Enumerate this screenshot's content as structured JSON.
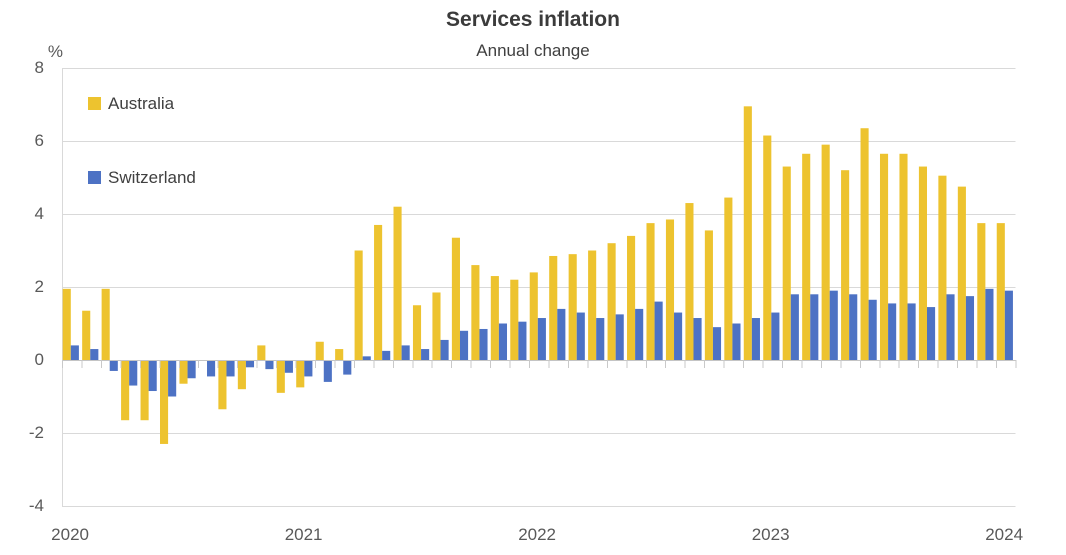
{
  "chart_data": {
    "type": "bar",
    "title": "Services inflation",
    "subtitle": "Annual change",
    "unit_label": "%",
    "frequency": "monthly",
    "start_month": "2020-01",
    "end_month": "2024-01",
    "ylim": [
      -4,
      8
    ],
    "grid": "horizontal",
    "legend_position": "top-left-inside",
    "y_ticks": [
      {
        "label": "8",
        "value": 8
      },
      {
        "label": "6",
        "value": 6
      },
      {
        "label": "4",
        "value": 4
      },
      {
        "label": "2",
        "value": 2
      },
      {
        "label": "0",
        "value": 0
      },
      {
        "label": "-2",
        "value": -2
      },
      {
        "label": "-4",
        "value": -4
      }
    ],
    "x_ticks": [
      {
        "label": "2020",
        "month_index": 0
      },
      {
        "label": "2021",
        "month_index": 12
      },
      {
        "label": "2022",
        "month_index": 24
      },
      {
        "label": "2023",
        "month_index": 36
      },
      {
        "label": "2024",
        "month_index": 48
      }
    ],
    "series": [
      {
        "name": "Australia",
        "color": "#EDC32F",
        "values": [
          1.95,
          1.35,
          1.95,
          -1.65,
          -1.65,
          -2.3,
          -0.65,
          0.0,
          -1.35,
          -0.8,
          0.4,
          -0.9,
          -0.75,
          0.5,
          0.3,
          3.0,
          3.7,
          4.2,
          1.5,
          1.85,
          3.35,
          2.6,
          2.3,
          2.2,
          2.4,
          2.85,
          2.9,
          3.0,
          3.2,
          3.4,
          3.75,
          3.85,
          4.3,
          3.55,
          4.45,
          6.95,
          6.15,
          5.3,
          5.65,
          5.9,
          5.2,
          6.35,
          5.65,
          5.65,
          5.3,
          5.05,
          4.75,
          3.75,
          3.75
        ]
      },
      {
        "name": "Switzerland",
        "color": "#4D72C4",
        "values": [
          0.4,
          0.3,
          -0.3,
          -0.7,
          -0.85,
          -1.0,
          -0.5,
          -0.45,
          -0.45,
          -0.2,
          -0.25,
          -0.35,
          -0.45,
          -0.6,
          -0.4,
          0.1,
          0.25,
          0.4,
          0.3,
          0.55,
          0.8,
          0.85,
          1.0,
          1.05,
          1.15,
          1.4,
          1.3,
          1.15,
          1.25,
          1.4,
          1.6,
          1.3,
          1.15,
          0.9,
          1.0,
          1.15,
          1.3,
          1.8,
          1.8,
          1.9,
          1.8,
          1.65,
          1.55,
          1.55,
          1.45,
          1.8,
          1.75,
          1.95,
          1.9
        ]
      }
    ],
    "style": {
      "gridline_color": "#D9D9D9",
      "axis_line_color": "#C4C4C4",
      "tick_color": "#C9C9C9",
      "title_color": "#3B3B3B",
      "axis_label_color": "#595959"
    }
  }
}
